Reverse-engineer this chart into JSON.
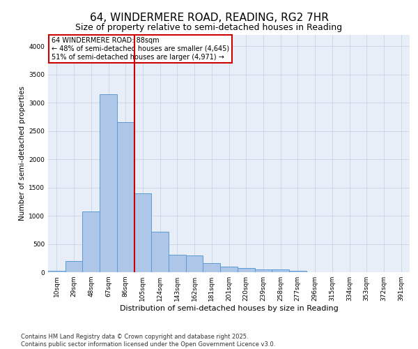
{
  "title_line1": "64, WINDERMERE ROAD, READING, RG2 7HR",
  "title_line2": "Size of property relative to semi-detached houses in Reading",
  "xlabel": "Distribution of semi-detached houses by size in Reading",
  "ylabel": "Number of semi-detached properties",
  "categories": [
    "10sqm",
    "29sqm",
    "48sqm",
    "67sqm",
    "86sqm",
    "105sqm",
    "124sqm",
    "143sqm",
    "162sqm",
    "181sqm",
    "201sqm",
    "220sqm",
    "239sqm",
    "258sqm",
    "277sqm",
    "296sqm",
    "315sqm",
    "334sqm",
    "353sqm",
    "372sqm",
    "391sqm"
  ],
  "values": [
    20,
    200,
    1080,
    3150,
    2650,
    1390,
    720,
    310,
    300,
    160,
    100,
    75,
    55,
    50,
    20,
    0,
    0,
    0,
    0,
    0,
    0
  ],
  "bar_color": "#aec6e8",
  "bar_edge_color": "#5b9bd5",
  "vline_color": "#cc0000",
  "vline_pos": 4.5,
  "annotation_text": "64 WINDERMERE ROAD: 88sqm\n← 48% of semi-detached houses are smaller (4,645)\n51% of semi-detached houses are larger (4,971) →",
  "annotation_box_color": "#ffffff",
  "annotation_box_edge": "#cc0000",
  "ylim": [
    0,
    4200
  ],
  "yticks": [
    0,
    500,
    1000,
    1500,
    2000,
    2500,
    3000,
    3500,
    4000
  ],
  "background_color": "#e8eef7",
  "footer_line1": "Contains HM Land Registry data © Crown copyright and database right 2025.",
  "footer_line2": "Contains public sector information licensed under the Open Government Licence v3.0.",
  "title_fontsize": 11,
  "subtitle_fontsize": 9,
  "ylabel_fontsize": 7.5,
  "xlabel_fontsize": 8,
  "tick_fontsize": 6.5,
  "footer_fontsize": 6,
  "annot_fontsize": 7
}
